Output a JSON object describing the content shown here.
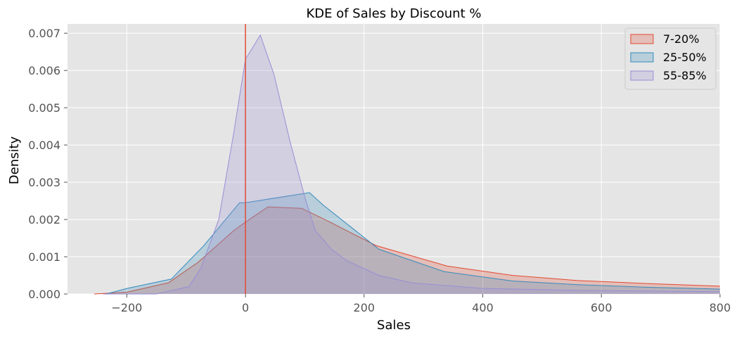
{
  "chart_data": {
    "type": "area",
    "title": "KDE of Sales by Discount %",
    "xlabel": "Sales",
    "ylabel": "Density",
    "xlim": [
      -300,
      800
    ],
    "ylim": [
      0,
      0.00725
    ],
    "x_ticks": [
      -200,
      0,
      200,
      400,
      600,
      800
    ],
    "x_tick_labels": [
      "−200",
      "0",
      "200",
      "400",
      "600",
      "800"
    ],
    "y_ticks": [
      0,
      0.001,
      0.002,
      0.003,
      0.004,
      0.005,
      0.006,
      0.007
    ],
    "y_tick_labels": [
      "0.000",
      "0.001",
      "0.002",
      "0.003",
      "0.004",
      "0.005",
      "0.006",
      "0.007"
    ],
    "grid": true,
    "legend_position": "top-right",
    "vline_x": 0,
    "series": [
      {
        "name": "7-20%",
        "color": "#E24A33",
        "fill": "#E24A33",
        "points": [
          [
            -255,
            0
          ],
          [
            -200,
            5e-05
          ],
          [
            -130,
            0.0003
          ],
          [
            -80,
            0.00085
          ],
          [
            -20,
            0.0017
          ],
          [
            0,
            0.00193
          ],
          [
            38,
            0.00234
          ],
          [
            95,
            0.0023
          ],
          [
            140,
            0.00195
          ],
          [
            220,
            0.0013
          ],
          [
            340,
            0.00075
          ],
          [
            450,
            0.0005
          ],
          [
            560,
            0.00036
          ],
          [
            680,
            0.00028
          ],
          [
            800,
            0.00021
          ]
        ]
      },
      {
        "name": "25-50%",
        "color": "#348ABD",
        "fill": "#348ABD",
        "points": [
          [
            -235,
            0
          ],
          [
            -200,
            0.00015
          ],
          [
            -125,
            0.0004
          ],
          [
            -70,
            0.0013
          ],
          [
            -10,
            0.00245
          ],
          [
            0,
            0.00245
          ],
          [
            108,
            0.00272
          ],
          [
            130,
            0.0024
          ],
          [
            225,
            0.0012
          ],
          [
            335,
            0.0006
          ],
          [
            450,
            0.00035
          ],
          [
            560,
            0.00025
          ],
          [
            680,
            0.00018
          ],
          [
            800,
            0.00013
          ]
        ]
      },
      {
        "name": "55-85%",
        "color": "#988ED5",
        "fill": "#988ED5",
        "points": [
          [
            -240,
            0
          ],
          [
            -150,
            0
          ],
          [
            -95,
            0.0002
          ],
          [
            -75,
            0.0007
          ],
          [
            -45,
            0.002
          ],
          [
            -20,
            0.0043
          ],
          [
            0,
            0.0063
          ],
          [
            25,
            0.00695
          ],
          [
            48,
            0.0059
          ],
          [
            75,
            0.0041
          ],
          [
            100,
            0.0026
          ],
          [
            118,
            0.0017
          ],
          [
            145,
            0.0012
          ],
          [
            170,
            0.0009
          ],
          [
            225,
            0.0005
          ],
          [
            280,
            0.0003
          ],
          [
            400,
            0.00015
          ],
          [
            550,
            0.0001
          ],
          [
            800,
            6e-05
          ]
        ]
      }
    ]
  }
}
